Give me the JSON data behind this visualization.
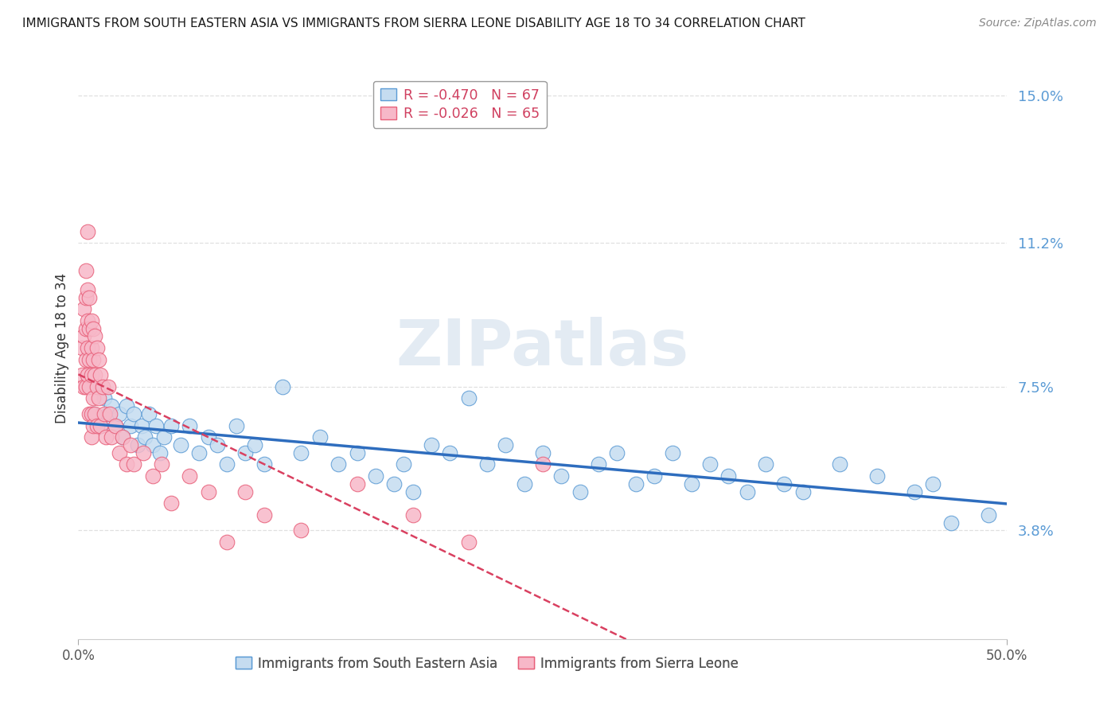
{
  "title": "IMMIGRANTS FROM SOUTH EASTERN ASIA VS IMMIGRANTS FROM SIERRA LEONE DISABILITY AGE 18 TO 34 CORRELATION CHART",
  "source": "Source: ZipAtlas.com",
  "ylabel": "Disability Age 18 to 34",
  "yticks": [
    0.038,
    0.075,
    0.112,
    0.15
  ],
  "ytick_labels": [
    "3.8%",
    "7.5%",
    "11.2%",
    "15.0%"
  ],
  "xlim": [
    0.0,
    0.5
  ],
  "ylim": [
    0.01,
    0.16
  ],
  "legend_r_sea": "-0.470",
  "legend_n_sea": "67",
  "legend_r_sl": "-0.026",
  "legend_n_sl": "65",
  "watermark": "ZIPatlas",
  "sea_face_color": "#c5dcf0",
  "sl_face_color": "#f7b8c8",
  "sea_edge_color": "#5b9bd5",
  "sl_edge_color": "#e8607a",
  "sea_line_color": "#2e6dbe",
  "sl_line_color": "#d94060",
  "background_color": "#ffffff",
  "grid_color": "#e0e0e0",
  "legend_text_r_color": "#d04060",
  "legend_text_n_color": "#404080",
  "ytick_color": "#5b9bd5",
  "sea_points": [
    [
      0.008,
      0.068
    ],
    [
      0.01,
      0.075
    ],
    [
      0.012,
      0.065
    ],
    [
      0.014,
      0.072
    ],
    [
      0.016,
      0.068
    ],
    [
      0.018,
      0.07
    ],
    [
      0.02,
      0.065
    ],
    [
      0.022,
      0.068
    ],
    [
      0.024,
      0.062
    ],
    [
      0.026,
      0.07
    ],
    [
      0.028,
      0.065
    ],
    [
      0.03,
      0.068
    ],
    [
      0.032,
      0.06
    ],
    [
      0.034,
      0.065
    ],
    [
      0.036,
      0.062
    ],
    [
      0.038,
      0.068
    ],
    [
      0.04,
      0.06
    ],
    [
      0.042,
      0.065
    ],
    [
      0.044,
      0.058
    ],
    [
      0.046,
      0.062
    ],
    [
      0.05,
      0.065
    ],
    [
      0.055,
      0.06
    ],
    [
      0.06,
      0.065
    ],
    [
      0.065,
      0.058
    ],
    [
      0.07,
      0.062
    ],
    [
      0.075,
      0.06
    ],
    [
      0.08,
      0.055
    ],
    [
      0.085,
      0.065
    ],
    [
      0.09,
      0.058
    ],
    [
      0.095,
      0.06
    ],
    [
      0.1,
      0.055
    ],
    [
      0.11,
      0.075
    ],
    [
      0.12,
      0.058
    ],
    [
      0.13,
      0.062
    ],
    [
      0.14,
      0.055
    ],
    [
      0.15,
      0.058
    ],
    [
      0.16,
      0.052
    ],
    [
      0.17,
      0.05
    ],
    [
      0.175,
      0.055
    ],
    [
      0.18,
      0.048
    ],
    [
      0.19,
      0.06
    ],
    [
      0.2,
      0.058
    ],
    [
      0.21,
      0.072
    ],
    [
      0.22,
      0.055
    ],
    [
      0.23,
      0.06
    ],
    [
      0.24,
      0.05
    ],
    [
      0.25,
      0.058
    ],
    [
      0.26,
      0.052
    ],
    [
      0.27,
      0.048
    ],
    [
      0.28,
      0.055
    ],
    [
      0.29,
      0.058
    ],
    [
      0.3,
      0.05
    ],
    [
      0.31,
      0.052
    ],
    [
      0.32,
      0.058
    ],
    [
      0.33,
      0.05
    ],
    [
      0.34,
      0.055
    ],
    [
      0.35,
      0.052
    ],
    [
      0.36,
      0.048
    ],
    [
      0.37,
      0.055
    ],
    [
      0.38,
      0.05
    ],
    [
      0.39,
      0.048
    ],
    [
      0.41,
      0.055
    ],
    [
      0.43,
      0.052
    ],
    [
      0.45,
      0.048
    ],
    [
      0.46,
      0.05
    ],
    [
      0.47,
      0.04
    ],
    [
      0.49,
      0.042
    ]
  ],
  "sl_points": [
    [
      0.002,
      0.085
    ],
    [
      0.002,
      0.078
    ],
    [
      0.003,
      0.095
    ],
    [
      0.003,
      0.088
    ],
    [
      0.003,
      0.075
    ],
    [
      0.004,
      0.105
    ],
    [
      0.004,
      0.098
    ],
    [
      0.004,
      0.09
    ],
    [
      0.004,
      0.082
    ],
    [
      0.004,
      0.075
    ],
    [
      0.005,
      0.115
    ],
    [
      0.005,
      0.1
    ],
    [
      0.005,
      0.092
    ],
    [
      0.005,
      0.085
    ],
    [
      0.005,
      0.078
    ],
    [
      0.006,
      0.098
    ],
    [
      0.006,
      0.09
    ],
    [
      0.006,
      0.082
    ],
    [
      0.006,
      0.075
    ],
    [
      0.006,
      0.068
    ],
    [
      0.007,
      0.092
    ],
    [
      0.007,
      0.085
    ],
    [
      0.007,
      0.078
    ],
    [
      0.007,
      0.068
    ],
    [
      0.007,
      0.062
    ],
    [
      0.008,
      0.09
    ],
    [
      0.008,
      0.082
    ],
    [
      0.008,
      0.072
    ],
    [
      0.008,
      0.065
    ],
    [
      0.009,
      0.088
    ],
    [
      0.009,
      0.078
    ],
    [
      0.009,
      0.068
    ],
    [
      0.01,
      0.085
    ],
    [
      0.01,
      0.075
    ],
    [
      0.01,
      0.065
    ],
    [
      0.011,
      0.082
    ],
    [
      0.011,
      0.072
    ],
    [
      0.012,
      0.078
    ],
    [
      0.012,
      0.065
    ],
    [
      0.013,
      0.075
    ],
    [
      0.014,
      0.068
    ],
    [
      0.015,
      0.062
    ],
    [
      0.016,
      0.075
    ],
    [
      0.017,
      0.068
    ],
    [
      0.018,
      0.062
    ],
    [
      0.02,
      0.065
    ],
    [
      0.022,
      0.058
    ],
    [
      0.024,
      0.062
    ],
    [
      0.026,
      0.055
    ],
    [
      0.028,
      0.06
    ],
    [
      0.03,
      0.055
    ],
    [
      0.035,
      0.058
    ],
    [
      0.04,
      0.052
    ],
    [
      0.045,
      0.055
    ],
    [
      0.05,
      0.045
    ],
    [
      0.06,
      0.052
    ],
    [
      0.07,
      0.048
    ],
    [
      0.08,
      0.035
    ],
    [
      0.09,
      0.048
    ],
    [
      0.1,
      0.042
    ],
    [
      0.12,
      0.038
    ],
    [
      0.15,
      0.05
    ],
    [
      0.18,
      0.042
    ],
    [
      0.21,
      0.035
    ],
    [
      0.25,
      0.055
    ]
  ]
}
